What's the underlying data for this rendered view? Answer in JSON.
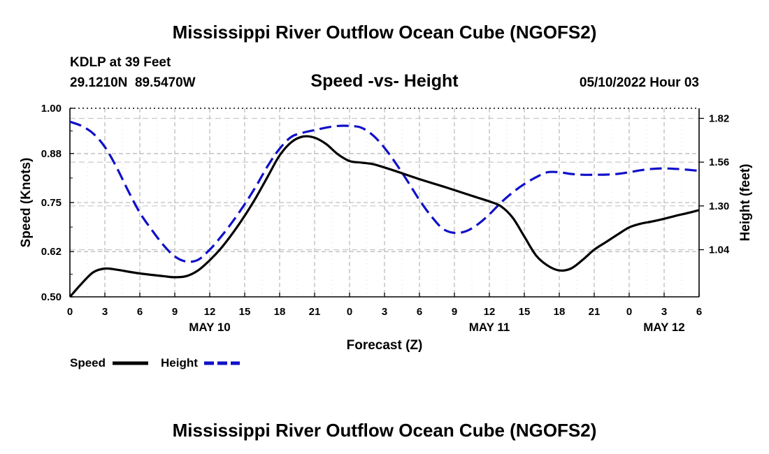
{
  "page": {
    "title": "Mississippi River Outflow Ocean Cube (NGOFS2)",
    "title_repeat": "Mississippi River Outflow Ocean Cube (NGOFS2)",
    "station_line": "KDLP at 39 Feet",
    "coords_line": "29.1210N  89.5470W",
    "subtitle": "Speed -vs- Height",
    "datetime": "05/10/2022 Hour 03"
  },
  "chart_data": {
    "type": "line",
    "title": "Speed -vs- Height",
    "xlabel": "Forecast (Z)",
    "ylabel": "Speed (Knots)",
    "y2label": "Height (feet)",
    "xlim": [
      0,
      54
    ],
    "ylim": [
      0.5,
      1.0
    ],
    "y2lim": [
      0.76,
      1.88
    ],
    "x_ticks": [
      0,
      3,
      6,
      9,
      12,
      15,
      18,
      21,
      24,
      27,
      30,
      33,
      36,
      39,
      42,
      45,
      48,
      51,
      54
    ],
    "x_tick_labels": [
      "0",
      "3",
      "6",
      "9",
      "12",
      "15",
      "18",
      "21",
      "0",
      "3",
      "6",
      "9",
      "12",
      "15",
      "18",
      "21",
      "0",
      "3",
      "6"
    ],
    "y_ticks": [
      0.5,
      0.62,
      0.75,
      0.88,
      1.0
    ],
    "y_tick_labels": [
      "0.50",
      "0.62",
      "0.75",
      "0.88",
      "1.00"
    ],
    "y2_ticks": [
      1.04,
      1.3,
      1.56,
      1.82
    ],
    "y2_tick_labels": [
      "1.04",
      "1.30",
      "1.56",
      "1.82"
    ],
    "date_labels": [
      {
        "x": 12,
        "label": "MAY 10"
      },
      {
        "x": 36,
        "label": "MAY 11"
      },
      {
        "x": 51,
        "label": "MAY 12"
      }
    ],
    "grid": true,
    "legend": {
      "position": "bottom-left"
    },
    "series": [
      {
        "name": "Speed",
        "axis": "left",
        "color": "#000000",
        "dash": "solid",
        "x": [
          0,
          1,
          2,
          3,
          4,
          6,
          8,
          9,
          10,
          11,
          12,
          13,
          14,
          15,
          16,
          17,
          18,
          19,
          20,
          21,
          22,
          23,
          24,
          25,
          26,
          27,
          28,
          30,
          32,
          34,
          35,
          36,
          37,
          38,
          39,
          40,
          41,
          42,
          43,
          44,
          45,
          46,
          47,
          48,
          49,
          50,
          51,
          52,
          53,
          54
        ],
        "y": [
          0.5,
          0.535,
          0.565,
          0.575,
          0.572,
          0.562,
          0.555,
          0.552,
          0.555,
          0.57,
          0.597,
          0.63,
          0.67,
          0.715,
          0.765,
          0.82,
          0.875,
          0.91,
          0.925,
          0.922,
          0.905,
          0.878,
          0.86,
          0.856,
          0.852,
          0.843,
          0.833,
          0.812,
          0.793,
          0.773,
          0.763,
          0.753,
          0.74,
          0.71,
          0.66,
          0.61,
          0.583,
          0.57,
          0.575,
          0.598,
          0.625,
          0.645,
          0.665,
          0.684,
          0.694,
          0.7,
          0.707,
          0.715,
          0.722,
          0.73
        ]
      },
      {
        "name": "Height",
        "axis": "right",
        "color": "#1010c8",
        "dash": "dashed",
        "x": [
          0,
          1,
          2,
          3,
          4,
          5,
          6,
          7,
          8,
          9,
          10,
          11,
          12,
          13,
          14,
          15,
          16,
          17,
          18,
          19,
          20,
          21,
          22,
          23,
          24,
          25,
          26,
          27,
          28,
          29,
          30,
          31,
          32,
          33,
          34,
          35,
          36,
          37,
          38,
          39,
          40,
          41,
          42,
          43,
          44,
          45,
          46,
          47,
          48,
          49,
          50,
          51,
          52,
          53,
          54
        ],
        "y": [
          1.8,
          1.775,
          1.73,
          1.65,
          1.53,
          1.39,
          1.26,
          1.16,
          1.07,
          1.0,
          0.97,
          0.98,
          1.04,
          1.12,
          1.21,
          1.31,
          1.42,
          1.54,
          1.64,
          1.71,
          1.735,
          1.75,
          1.765,
          1.775,
          1.775,
          1.765,
          1.72,
          1.645,
          1.55,
          1.445,
          1.335,
          1.24,
          1.165,
          1.14,
          1.15,
          1.19,
          1.25,
          1.32,
          1.38,
          1.43,
          1.47,
          1.5,
          1.5,
          1.49,
          1.485,
          1.485,
          1.486,
          1.49,
          1.5,
          1.512,
          1.52,
          1.523,
          1.52,
          1.515,
          1.508
        ]
      }
    ]
  }
}
